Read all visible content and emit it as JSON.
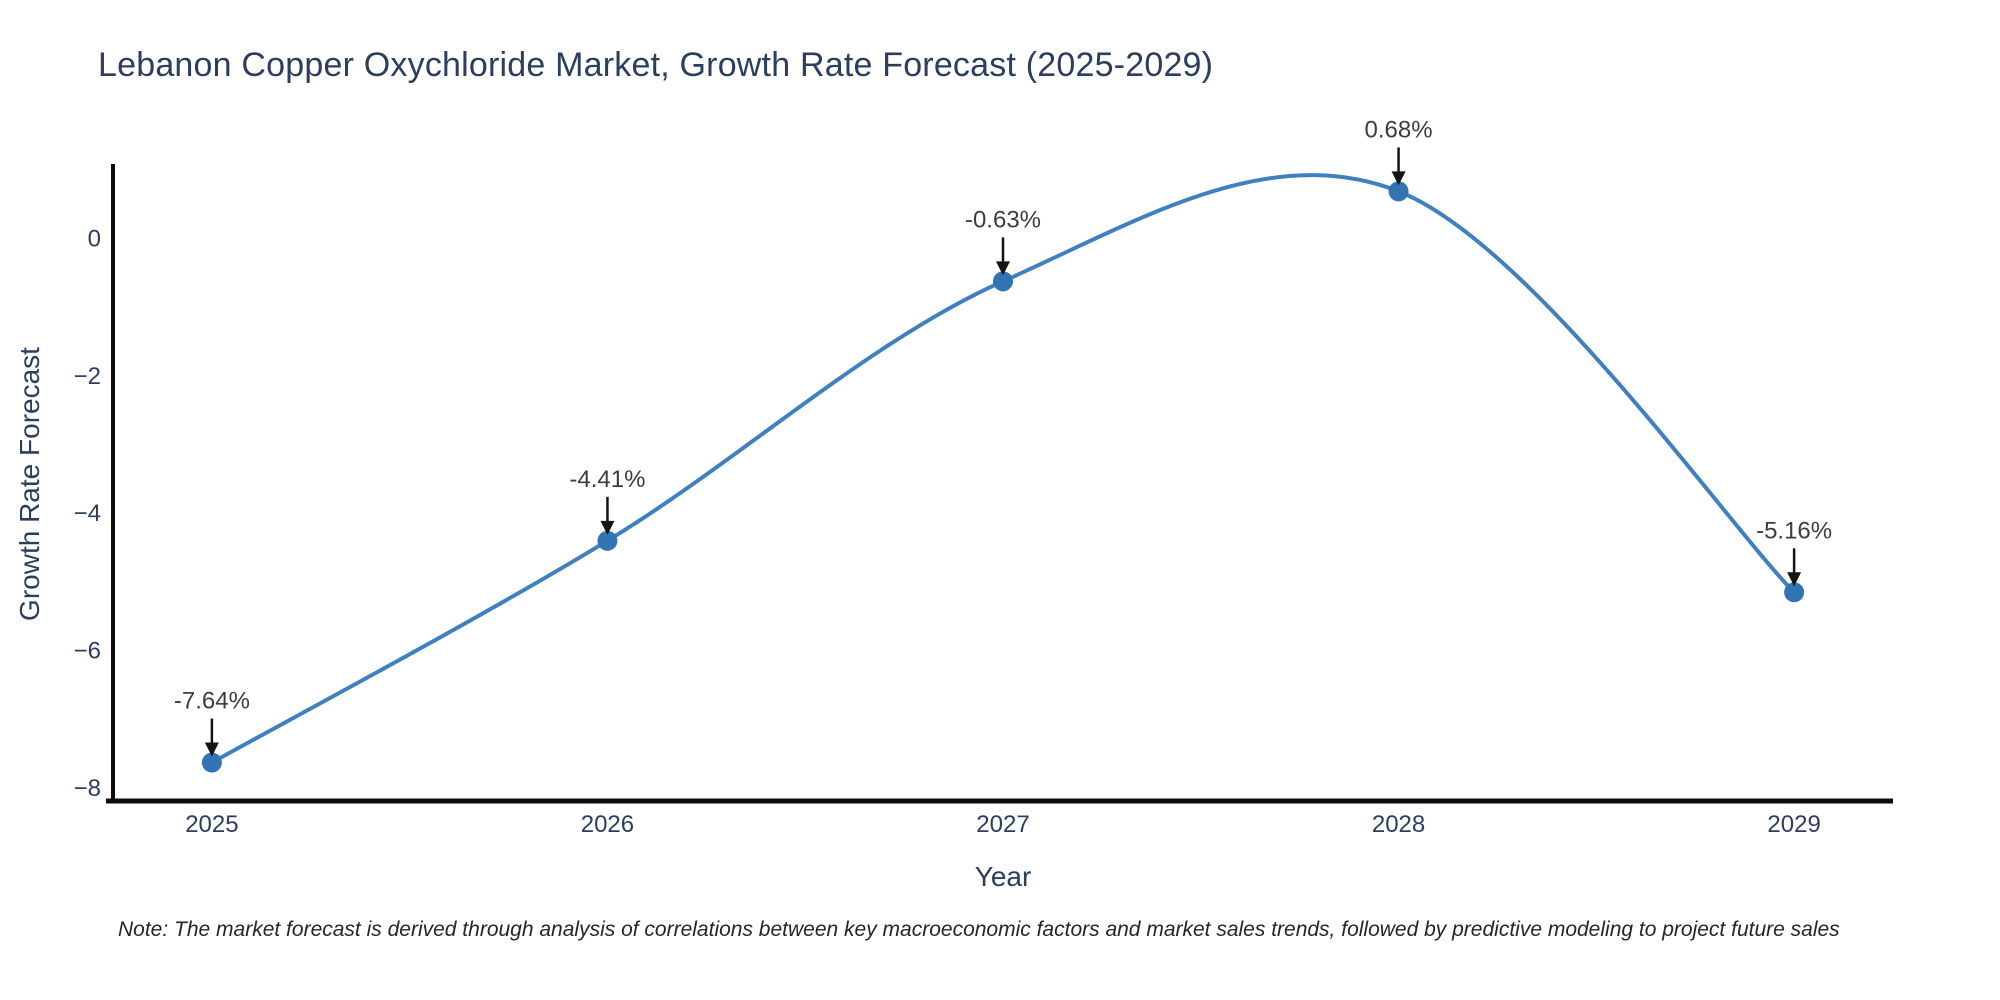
{
  "page": {
    "background": "#ffffff"
  },
  "title": {
    "text": "Lebanon Copper Oxychloride Market, Growth Rate Forecast (2025-2029)"
  },
  "note": {
    "text": "Note: The market forecast is derived through analysis of correlations between key macroeconomic factors and market sales trends, followed by predictive modeling to project future sales"
  },
  "chart_data": {
    "type": "line",
    "title": "Lebanon Copper Oxychloride Market, Growth Rate Forecast (2025-2029)",
    "xlabel": "Year",
    "ylabel": "Growth Rate Forecast",
    "x": [
      2025,
      2026,
      2027,
      2028,
      2029
    ],
    "values": [
      -7.64,
      -4.41,
      -0.63,
      0.68,
      -5.16
    ],
    "point_labels": [
      "-7.64%",
      "-4.41%",
      "-0.63%",
      "0.68%",
      "-5.16%"
    ],
    "xticks": [
      2025,
      2026,
      2027,
      2028,
      2029
    ],
    "yticks": [
      0,
      -2,
      -4,
      -6,
      -8
    ],
    "xlim": [
      2024.75,
      2029.25
    ],
    "ylim": [
      -8.2,
      1.05
    ],
    "grid": false,
    "legend": "none",
    "line_shape": "spline",
    "annotation_arrows": true,
    "colors": {
      "line": "#3f80c1",
      "marker": "#3273b4",
      "axis": "#0d0d0d",
      "tick_label": "#2a3f5f",
      "axis_title": "#2a3f5f",
      "chart_title": "#2a3f5f",
      "annotation_text": "#3d3d3d",
      "arrow": "#141414"
    }
  }
}
